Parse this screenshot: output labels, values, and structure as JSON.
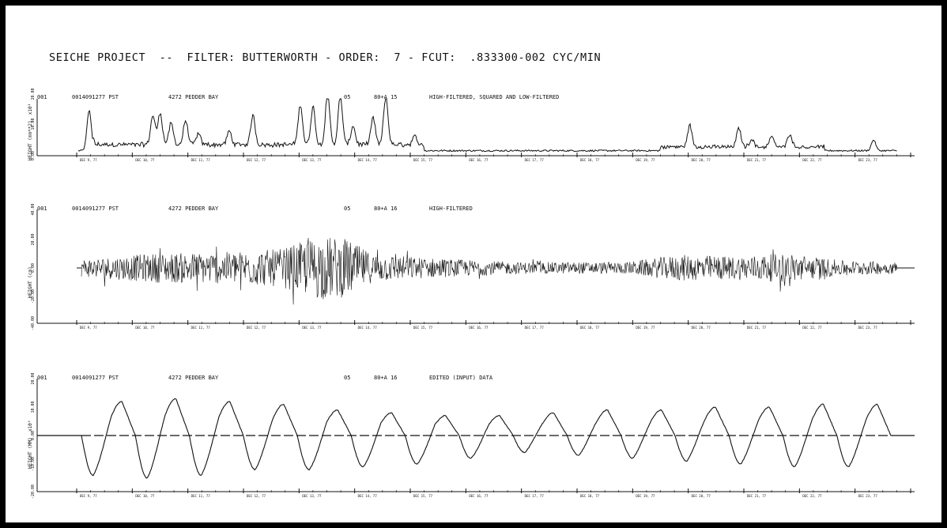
{
  "title": "SEICHE PROJECT  --  FILTER: BUTTERWORTH - ORDER:  7 - FCUT:  .833300-002 CYC/MIN",
  "colors": {
    "ink": "#111111",
    "frame": "#000000",
    "paper": "#ffffff"
  },
  "chart_data": [
    {
      "type": "line",
      "panel_id": "001",
      "station": "0014091277 PST",
      "location": "4272 PEDDER BAY",
      "run": "05",
      "record": "80+A 15",
      "description": "HIGH-FILTERED, SQUARED AND LOW-FILTERED",
      "ylabel": "HEIGHT (mm**2)  x10¹",
      "yticks": [
        "0.00",
        "10.00",
        "20.00"
      ],
      "ylim": [
        0,
        20
      ],
      "n_days": 15,
      "peaks": [
        {
          "t": 0.3,
          "v": 15
        },
        {
          "t": 2.05,
          "v": 11
        },
        {
          "t": 2.25,
          "v": 12
        },
        {
          "t": 2.55,
          "v": 8
        },
        {
          "t": 2.95,
          "v": 9
        },
        {
          "t": 3.3,
          "v": 4
        },
        {
          "t": 4.15,
          "v": 5
        },
        {
          "t": 4.8,
          "v": 11
        },
        {
          "t": 6.1,
          "v": 15
        },
        {
          "t": 6.45,
          "v": 14
        },
        {
          "t": 6.85,
          "v": 19
        },
        {
          "t": 7.2,
          "v": 18
        },
        {
          "t": 7.55,
          "v": 7
        },
        {
          "t": 8.1,
          "v": 10
        },
        {
          "t": 8.45,
          "v": 18
        },
        {
          "t": 9.25,
          "v": 3
        },
        {
          "t": 16.8,
          "v": 8
        },
        {
          "t": 18.15,
          "v": 7
        },
        {
          "t": 18.5,
          "v": 3
        },
        {
          "t": 19.05,
          "v": 4
        },
        {
          "t": 19.55,
          "v": 5
        },
        {
          "t": 21.85,
          "v": 4
        }
      ]
    },
    {
      "type": "line",
      "panel_id": "001",
      "station": "0014091277 PST",
      "location": "4272 PEDDER BAY",
      "run": "05",
      "record": "80+A 16",
      "description": "HIGH-FILTERED",
      "ylabel": "HEIGHT (cm)",
      "yticks": [
        "-40.00",
        "-20.00",
        "0.00",
        "20.00",
        "40.00"
      ],
      "ylim": [
        -40,
        40
      ],
      "n_days": 15,
      "envelope": [
        {
          "t": 0.0,
          "a": 6
        },
        {
          "t": 2.0,
          "a": 10
        },
        {
          "t": 4.0,
          "a": 11
        },
        {
          "t": 5.5,
          "a": 13
        },
        {
          "t": 6.6,
          "a": 22
        },
        {
          "t": 7.3,
          "a": 20
        },
        {
          "t": 8.0,
          "a": 10
        },
        {
          "t": 9.5,
          "a": 7
        },
        {
          "t": 12.0,
          "a": 4
        },
        {
          "t": 15.0,
          "a": 4
        },
        {
          "t": 16.5,
          "a": 9
        },
        {
          "t": 18.0,
          "a": 8
        },
        {
          "t": 19.5,
          "a": 10
        },
        {
          "t": 21.0,
          "a": 5
        },
        {
          "t": 22.5,
          "a": 4
        }
      ]
    },
    {
      "type": "line",
      "panel_id": "001",
      "station": "0014091277 PST",
      "location": "4272 PEDDER BAY",
      "run": "05",
      "record": "80+A 16",
      "description": "EDITED (INPUT) DATA",
      "ylabel": "HEIGHT (MM)  x10²",
      "yticks": [
        "-20.00",
        "-10.00",
        "0.00",
        "10.00",
        "20.00"
      ],
      "ylim": [
        -20,
        20
      ],
      "n_days": 15,
      "tidal_cycle_days": 1.0,
      "lows": [
        -14,
        -15,
        -14,
        -12,
        -12,
        -11,
        -10,
        -8,
        -6,
        -7,
        -8,
        -9,
        -10,
        -11,
        -11
      ],
      "highs": [
        12,
        13,
        12,
        11,
        9,
        8,
        7,
        7,
        8,
        9,
        9,
        10,
        10,
        11,
        11
      ]
    }
  ],
  "axis_tick_labels": [
    "DEC 9, 77",
    "DEC 10, 77",
    "DEC 11, 77",
    "DEC 12, 77",
    "DEC 13, 77",
    "DEC 14, 77",
    "DEC 15, 77",
    "DEC 16, 77",
    "DEC 17, 77",
    "DEC 18, 77",
    "DEC 19, 77",
    "DEC 20, 77",
    "DEC 21, 77",
    "DEC 22, 77",
    "DEC 23, 77"
  ]
}
